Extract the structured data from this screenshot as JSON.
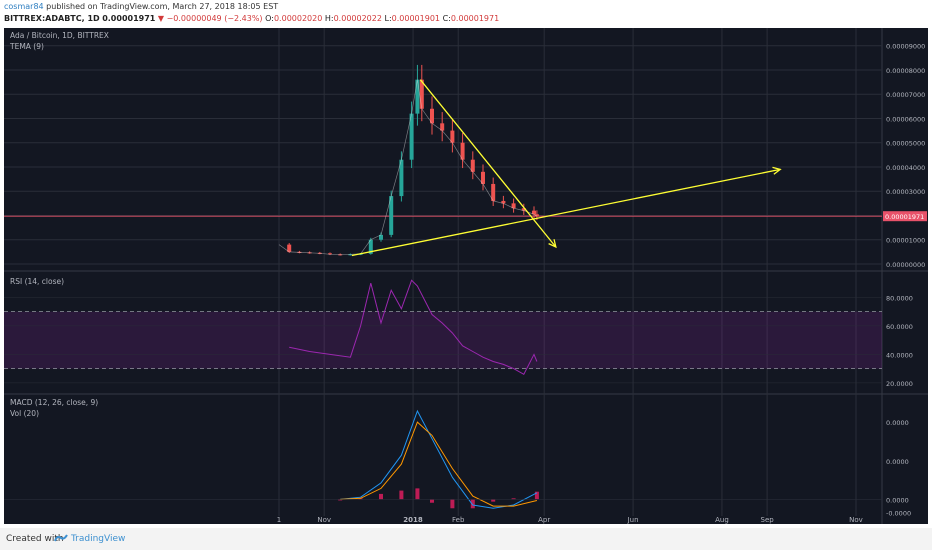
{
  "header": {
    "author": "cosmar84",
    "published_text": "published on TradingView.com, March 27, 2018 18:05 EST",
    "symbol": "BITTREX:ADABTC, 1D",
    "last": "0.00001971",
    "change": "−0.00000049 (−2.43%)",
    "o_label": "O:",
    "o_value": "0.00002020",
    "h_label": "H:",
    "h_value": "0.00002022",
    "l_label": "L:",
    "l_value": "0.00001901",
    "c_label": "C:",
    "c_value": "0.00001971"
  },
  "footer": {
    "created_with": "Created with",
    "brand": "TradingView"
  },
  "colors": {
    "background": "#131722",
    "grid": "#2a2e39",
    "text": "#b2b5be",
    "up": "#26a69a",
    "down": "#ef5350",
    "annotation": "#ffff33",
    "price_line": "#e8526a",
    "rsi": "#9c27b0",
    "macd": "#2196f3",
    "signal": "#ff9800",
    "histogram": "#e91e63"
  },
  "chart_data": [
    {
      "type": "line",
      "pane": "price",
      "title": "Ada / Bitcoin, 1D, BITTREX",
      "indicator": "TEMA (9)",
      "y_ticks": [
        "0.00000000",
        "0.00001000",
        "0.00002000",
        "0.00003000",
        "0.00004000",
        "0.00005000",
        "0.00006000",
        "0.00007000",
        "0.00008000",
        "0.00009000"
      ],
      "ylim": [
        0.0,
        9.4e-05
      ],
      "last_price_label": "0.00001971",
      "x": [
        "2017-10-01",
        "2017-10-08",
        "2017-10-15",
        "2017-10-22",
        "2017-10-29",
        "2017-11-05",
        "2017-11-12",
        "2017-11-19",
        "2017-11-26",
        "2017-12-03",
        "2017-12-10",
        "2017-12-17",
        "2017-12-24",
        "2017-12-31",
        "2018-01-04",
        "2018-01-07",
        "2018-01-14",
        "2018-01-21",
        "2018-01-28",
        "2018-02-04",
        "2018-02-11",
        "2018-02-18",
        "2018-02-25",
        "2018-03-04",
        "2018-03-11",
        "2018-03-18",
        "2018-03-25",
        "2018-03-27"
      ],
      "close": [
        8e-06,
        5e-06,
        4.8e-06,
        4.6e-06,
        4.4e-06,
        4e-06,
        3.8e-06,
        4e-06,
        4.2e-06,
        1e-05,
        1.2e-05,
        2.8e-05,
        4.3e-05,
        6.2e-05,
        7.6e-05,
        6.4e-05,
        5.8e-05,
        5.5e-05,
        5e-05,
        4.3e-05,
        3.8e-05,
        3.3e-05,
        2.6e-05,
        2.5e-05,
        2.3e-05,
        2.2e-05,
        2.05e-05,
        1.971e-05
      ],
      "annotations": [
        {
          "type": "arrow",
          "from": [
            "2018-01-06",
            7.6e-05
          ],
          "to": [
            "2018-04-09",
            7e-06
          ]
        },
        {
          "type": "arrow",
          "from": [
            "2017-11-20",
            3.5e-06
          ],
          "to": [
            "2018-09-10",
            3.9e-05
          ]
        }
      ]
    },
    {
      "type": "line",
      "pane": "rsi",
      "indicator": "RSI (14, close)",
      "y_ticks": [
        "20.0000",
        "40.0000",
        "60.0000",
        "80.0000"
      ],
      "ylim": [
        15,
        95
      ],
      "bands": [
        30,
        70
      ],
      "x": [
        "2017-10-08",
        "2017-10-22",
        "2017-11-05",
        "2017-11-19",
        "2017-11-26",
        "2017-12-03",
        "2017-12-10",
        "2017-12-17",
        "2017-12-24",
        "2017-12-31",
        "2018-01-04",
        "2018-01-14",
        "2018-01-21",
        "2018-01-28",
        "2018-02-04",
        "2018-02-11",
        "2018-02-18",
        "2018-02-25",
        "2018-03-04",
        "2018-03-11",
        "2018-03-18",
        "2018-03-25",
        "2018-03-27"
      ],
      "values": [
        45,
        42,
        40,
        38,
        60,
        90,
        62,
        85,
        72,
        92,
        88,
        68,
        62,
        55,
        46,
        42,
        38,
        35,
        33,
        30,
        26,
        40,
        35
      ]
    },
    {
      "type": "line",
      "pane": "macd",
      "indicator": "MACD (12, 26, close, 9)",
      "volume_label": "Vol (20)",
      "y_ticks": [
        "0.0000",
        "0.0000",
        "0.0000",
        "-0.0000"
      ],
      "x": [
        "2017-11-12",
        "2017-11-26",
        "2017-12-10",
        "2017-12-24",
        "2018-01-04",
        "2018-01-14",
        "2018-01-28",
        "2018-02-11",
        "2018-02-25",
        "2018-03-11",
        "2018-03-27"
      ],
      "series": [
        {
          "name": "MACD",
          "values": [
            0.0,
            0.2,
            1.5,
            4.0,
            8.0,
            5.5,
            2.0,
            -0.5,
            -0.8,
            -0.5,
            0.6
          ]
        },
        {
          "name": "Signal",
          "values": [
            0.0,
            0.1,
            1.0,
            3.2,
            7.0,
            5.8,
            2.8,
            0.3,
            -0.6,
            -0.6,
            -0.1
          ]
        }
      ]
    }
  ],
  "x_axis_labels": [
    "1",
    "Nov",
    "2018",
    "Feb",
    "Apr",
    "Jun",
    "Aug",
    "Sep",
    "Nov"
  ]
}
